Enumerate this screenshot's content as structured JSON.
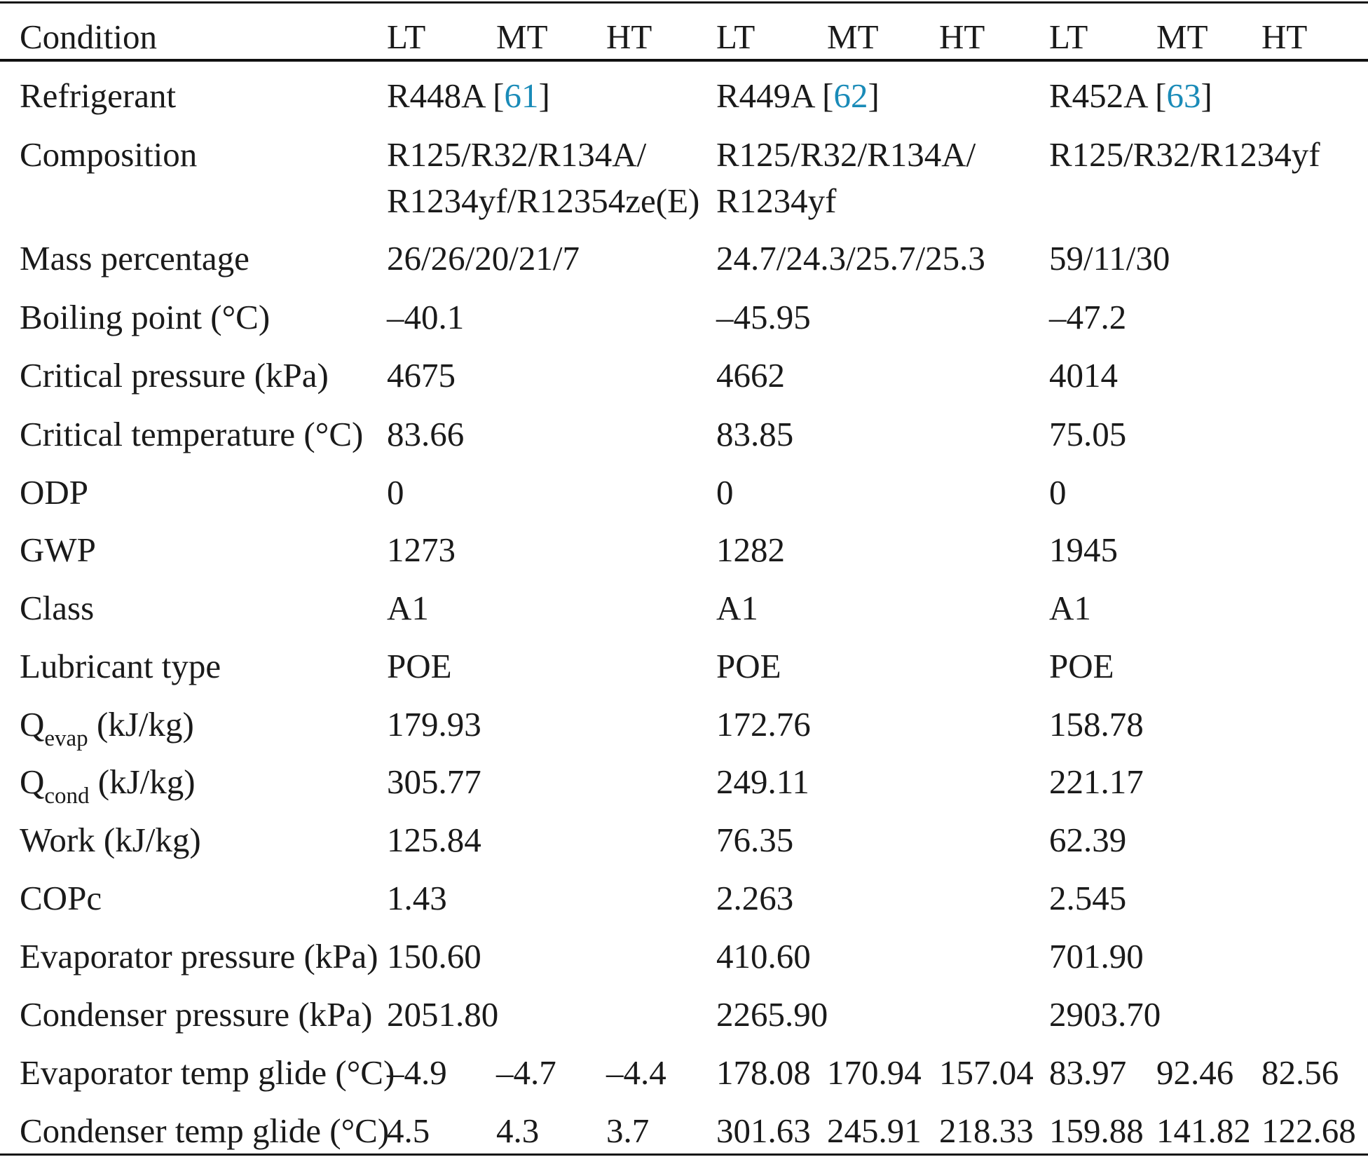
{
  "header": {
    "condition": "Condition",
    "cols": [
      "LT",
      "MT",
      "HT",
      "LT",
      "MT",
      "HT",
      "LT",
      "MT",
      "HT"
    ]
  },
  "refrigerant": {
    "label": "Refrigerant",
    "r1": "R448A",
    "r1_ref": "61",
    "r2": "R449A",
    "r2_ref": "62",
    "r3": "R452A",
    "r3_ref": "63"
  },
  "composition": {
    "label": "Composition",
    "r1_line1": "R125/R32/R134A/",
    "r1_line2": "R1234yf/R12354ze(E)",
    "r2_line1": "R125/R32/R134A/",
    "r2_line2": "R1234yf",
    "r3_line1": "R125/R32/R1234yf"
  },
  "rows": [
    {
      "label": "Mass percentage",
      "v1": "26/26/20/21/7",
      "v2": "24.7/24.3/25.7/25.3",
      "v3": "59/11/30"
    },
    {
      "label": "Boiling point (°C)",
      "v1": "–40.1",
      "v2": "–45.95",
      "v3": "–47.2"
    },
    {
      "label": "Critical pressure (kPa)",
      "v1": "4675",
      "v2": "4662",
      "v3": "4014"
    },
    {
      "label": "Critical temperature (°C)",
      "v1": "83.66",
      "v2": "83.85",
      "v3": "75.05"
    },
    {
      "label": "ODP",
      "v1": "0",
      "v2": "0",
      "v3": "0"
    },
    {
      "label": "GWP",
      "v1": "1273",
      "v2": "1282",
      "v3": "1945"
    },
    {
      "label": "Class",
      "v1": "A1",
      "v2": "A1",
      "v3": "A1"
    },
    {
      "label": "Lubricant type",
      "v1": "POE",
      "v2": "POE",
      "v3": "POE"
    }
  ],
  "qevap": {
    "q": "Q",
    "sub": "evap",
    "unit": " (kJ/kg)",
    "v1": "179.93",
    "v2": "172.76",
    "v3": "158.78"
  },
  "qcond": {
    "q": "Q",
    "sub": "cond",
    "unit": " (kJ/kg)",
    "v1": "305.77",
    "v2": "249.11",
    "v3": "221.17"
  },
  "rows2": [
    {
      "label": "Work (kJ/kg)",
      "v1": "125.84",
      "v2": "76.35",
      "v3": "62.39"
    },
    {
      "label": "COPc",
      "v1": "1.43",
      "v2": "2.263",
      "v3": "2.545"
    },
    {
      "label": "Evaporator pressure (kPa)",
      "v1": "150.60",
      "v2": "410.60",
      "v3": "701.90"
    },
    {
      "label": "Condenser pressure (kPa)",
      "v1": "2051.80",
      "v2": "2265.90",
      "v3": "2903.70"
    }
  ],
  "glide_evap": {
    "label": "Evaporator temp glide (°C)",
    "values": [
      "–4.9",
      "–4.7",
      "–4.4",
      "178.08",
      "170.94",
      "157.04",
      "83.97",
      "92.46",
      "82.56"
    ]
  },
  "glide_cond": {
    "label": "Condenser temp glide (°C)",
    "values": [
      "4.5",
      "4.3",
      "3.7",
      "301.63",
      "245.91",
      "218.33",
      "159.88",
      "141.82",
      "122.68"
    ]
  }
}
